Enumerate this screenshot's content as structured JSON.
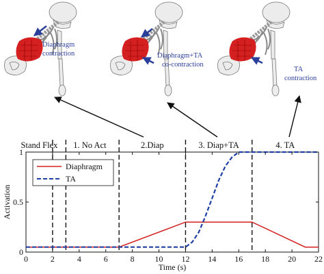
{
  "annotations": [
    {
      "line1": "Diaphragm",
      "line2": "contraction"
    },
    {
      "line1": "Diaphragm+TA",
      "line2": "co-contraction"
    },
    {
      "line1": "TA",
      "line2": "contraction"
    }
  ],
  "colors": {
    "diaphragm": "#d42020",
    "ta": "#1f3fa6",
    "annotation": "#2a3f9a",
    "muscle": "#d42020"
  },
  "chart_data": {
    "type": "line",
    "xlabel": "Time (s)",
    "ylabel": "Activation",
    "xlim": [
      0,
      22
    ],
    "ylim": [
      0,
      1
    ],
    "xticks": [
      "0",
      "2",
      "4",
      "6",
      "8",
      "10",
      "12",
      "14",
      "16",
      "18",
      "20",
      "22"
    ],
    "yticks": [
      "0",
      "0.5",
      "1"
    ],
    "legend_position": "top-left",
    "phase_boundaries": [
      2,
      3,
      7,
      12,
      17
    ],
    "phases": [
      {
        "label": "Stand Flex",
        "x": 1
      },
      {
        "label": "1. No Act",
        "x": 4.8
      },
      {
        "label": "2.Diap",
        "x": 9.5
      },
      {
        "label": "3. Diap+TA",
        "x": 14.5
      },
      {
        "label": "4. TA",
        "x": 19.5
      }
    ],
    "series": [
      {
        "name": "Diaphragm",
        "style": "solid",
        "color": "#d42020",
        "x": [
          0,
          7,
          12,
          17,
          21,
          22
        ],
        "y": [
          0.05,
          0.05,
          0.3,
          0.3,
          0.05,
          0.05
        ]
      },
      {
        "name": "TA",
        "style": "dashed",
        "color": "#1f3fa6",
        "x": [
          0,
          12,
          12.5,
          13,
          13.5,
          14,
          14.5,
          15,
          15.5,
          16,
          22
        ],
        "y": [
          0.05,
          0.05,
          0.1,
          0.2,
          0.36,
          0.54,
          0.72,
          0.86,
          0.95,
          1.0,
          1.0
        ]
      }
    ]
  }
}
